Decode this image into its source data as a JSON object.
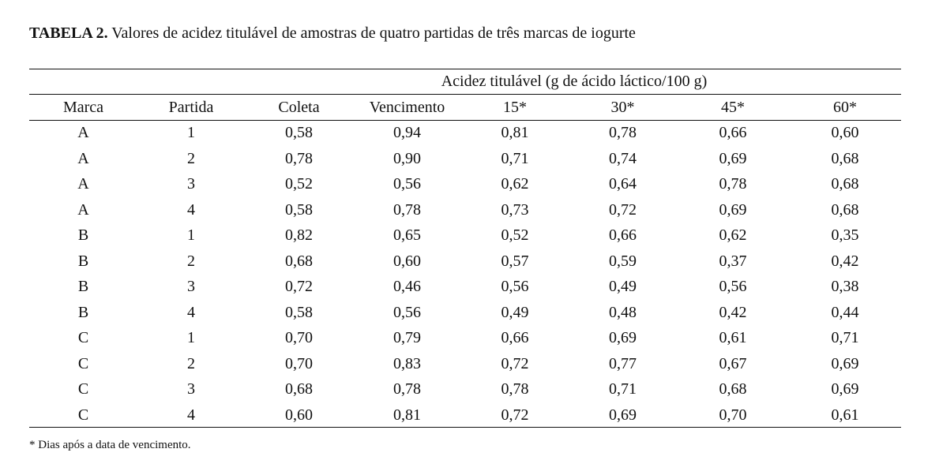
{
  "title": {
    "label": "TABELA 2.",
    "text": " Valores de acidez titulável de amostras de quatro partidas de três marcas de iogurte"
  },
  "table": {
    "group_header": "Acidez titulável (g de ácido láctico/100 g)",
    "columns": [
      "Marca",
      "Partida",
      "Coleta",
      "Vencimento",
      "15*",
      "30*",
      "45*",
      "60*"
    ],
    "rows": [
      [
        "A",
        "1",
        "0,58",
        "0,94",
        "0,81",
        "0,78",
        "0,66",
        "0,60"
      ],
      [
        "A",
        "2",
        "0,78",
        "0,90",
        "0,71",
        "0,74",
        "0,69",
        "0,68"
      ],
      [
        "A",
        "3",
        "0,52",
        "0,56",
        "0,62",
        "0,64",
        "0,78",
        "0,68"
      ],
      [
        "A",
        "4",
        "0,58",
        "0,78",
        "0,73",
        "0,72",
        "0,69",
        "0,68"
      ],
      [
        "B",
        "1",
        "0,82",
        "0,65",
        "0,52",
        "0,66",
        "0,62",
        "0,35"
      ],
      [
        "B",
        "2",
        "0,68",
        "0,60",
        "0,57",
        "0,59",
        "0,37",
        "0,42"
      ],
      [
        "B",
        "3",
        "0,72",
        "0,46",
        "0,56",
        "0,49",
        "0,56",
        "0,38"
      ],
      [
        "B",
        "4",
        "0,58",
        "0,56",
        "0,49",
        "0,48",
        "0,42",
        "0,44"
      ],
      [
        "C",
        "1",
        "0,70",
        "0,79",
        "0,66",
        "0,69",
        "0,61",
        "0,71"
      ],
      [
        "C",
        "2",
        "0,70",
        "0,83",
        "0,72",
        "0,77",
        "0,67",
        "0,69"
      ],
      [
        "C",
        "3",
        "0,68",
        "0,78",
        "0,78",
        "0,71",
        "0,68",
        "0,69"
      ],
      [
        "C",
        "4",
        "0,60",
        "0,81",
        "0,72",
        "0,69",
        "0,70",
        "0,61"
      ]
    ]
  },
  "footnote": "* Dias após a data de vencimento."
}
